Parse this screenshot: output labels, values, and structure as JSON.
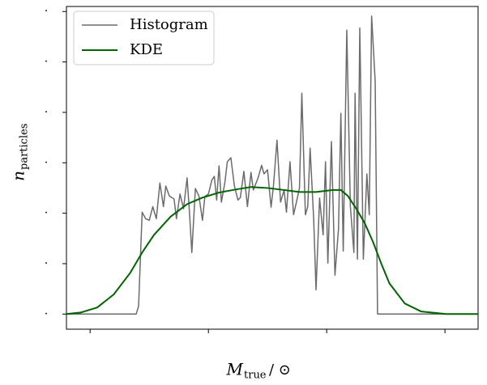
{
  "chart_data": {
    "type": "line",
    "x_label": {
      "main": "M",
      "sub": "true",
      "rest": "/ ⊙"
    },
    "y_label": {
      "main": "n",
      "sub": "particles"
    },
    "xlim": [
      -0.2,
      3.28
    ],
    "ylim": [
      -0.3,
      6.1
    ],
    "xticks": [
      0,
      1,
      2,
      3
    ],
    "yticks": [
      {
        "value": 0,
        "label": "."
      },
      {
        "value": 1,
        "label": "."
      },
      {
        "value": 2,
        "label": "."
      },
      {
        "value": 3,
        "label": "."
      },
      {
        "value": 4,
        "label": "."
      },
      {
        "value": 5,
        "label": "."
      },
      {
        "value": 6,
        "label": "."
      }
    ],
    "legend": "upper left",
    "series": [
      {
        "name": "Histogram",
        "color": "#6b6b6b",
        "width": 1.5,
        "x": [
          -0.2,
          0.39,
          0.41,
          0.44,
          0.47,
          0.5,
          0.53,
          0.56,
          0.59,
          0.62,
          0.64,
          0.67,
          0.71,
          0.73,
          0.76,
          0.79,
          0.82,
          0.84,
          0.86,
          0.89,
          0.92,
          0.95,
          0.97,
          1.0,
          1.03,
          1.05,
          1.07,
          1.09,
          1.11,
          1.14,
          1.16,
          1.19,
          1.22,
          1.25,
          1.27,
          1.3,
          1.33,
          1.36,
          1.38,
          1.42,
          1.45,
          1.47,
          1.5,
          1.53,
          1.55,
          1.58,
          1.61,
          1.64,
          1.66,
          1.69,
          1.72,
          1.75,
          1.77,
          1.79,
          1.82,
          1.84,
          1.86,
          1.89,
          1.91,
          1.94,
          1.97,
          1.99,
          2.01,
          2.04,
          2.07,
          2.1,
          2.12,
          2.14,
          2.17,
          2.2,
          2.23,
          2.24,
          2.26,
          2.28,
          2.31,
          2.34,
          2.36,
          2.38,
          2.41,
          2.43,
          3.28
        ],
        "values": [
          0,
          0,
          0.16,
          2.02,
          1.89,
          1.86,
          2.13,
          1.89,
          2.6,
          2.13,
          2.54,
          2.34,
          2.28,
          1.89,
          2.38,
          2.09,
          2.7,
          2.02,
          1.22,
          2.49,
          2.34,
          1.86,
          2.33,
          2.38,
          2.66,
          2.73,
          2.26,
          2.94,
          2.22,
          2.62,
          3.02,
          3.1,
          2.54,
          2.26,
          2.31,
          2.83,
          2.13,
          2.81,
          2.46,
          2.7,
          2.95,
          2.78,
          2.86,
          2.12,
          2.54,
          3.45,
          2.22,
          2.46,
          2.02,
          3.02,
          1.97,
          2.28,
          2.5,
          4.38,
          1.97,
          2.13,
          3.29,
          1.89,
          0.48,
          2.3,
          1.57,
          3.02,
          1.01,
          3.42,
          0.77,
          1.69,
          3.98,
          1.25,
          5.63,
          2.15,
          1.22,
          4.38,
          1.09,
          5.67,
          1.09,
          2.78,
          1.97,
          5.91,
          4.62,
          0,
          0
        ]
      },
      {
        "name": "KDE",
        "color": "#006400",
        "width": 2,
        "x": [
          -0.2,
          -0.08,
          0.06,
          0.2,
          0.34,
          0.44,
          0.54,
          0.68,
          0.82,
          0.95,
          1.09,
          1.23,
          1.36,
          1.5,
          1.64,
          1.77,
          1.91,
          2.05,
          2.12,
          2.18,
          2.25,
          2.32,
          2.39,
          2.46,
          2.53,
          2.66,
          2.8,
          3.01,
          3.28
        ],
        "values": [
          0,
          0.03,
          0.13,
          0.39,
          0.82,
          1.22,
          1.57,
          1.93,
          2.18,
          2.31,
          2.41,
          2.47,
          2.52,
          2.5,
          2.46,
          2.42,
          2.42,
          2.46,
          2.46,
          2.34,
          2.09,
          1.81,
          1.44,
          1.01,
          0.61,
          0.21,
          0.05,
          0,
          0
        ]
      }
    ]
  }
}
